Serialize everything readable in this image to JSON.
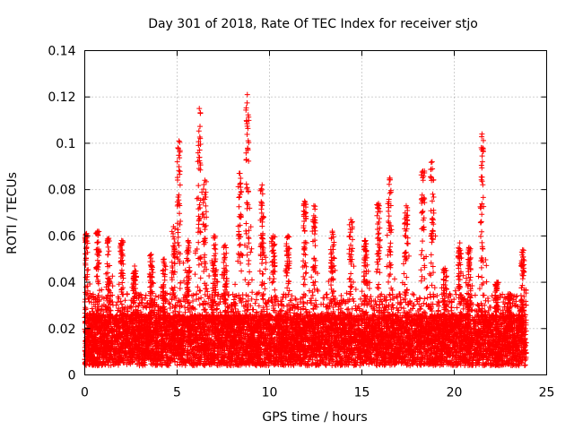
{
  "chart_data": {
    "type": "scatter",
    "title": "Day 301 of 2018, Rate Of TEC Index for receiver stjo",
    "xlabel": "GPS time / hours",
    "ylabel": "ROTI / TECUs",
    "xlim": [
      0,
      25
    ],
    "ylim": [
      0,
      0.14
    ],
    "xticks": [
      0,
      5,
      10,
      15,
      20,
      25
    ],
    "yticks": [
      0,
      0.02,
      0.04,
      0.06,
      0.08,
      0.1,
      0.12,
      0.14
    ],
    "xtick_labels": [
      "0",
      "5",
      "10",
      "15",
      "20",
      "25"
    ],
    "ytick_labels": [
      "0",
      "0.02",
      "0.04",
      "0.06",
      "0.08",
      "0.1",
      "0.12",
      "0.14"
    ],
    "grid": true,
    "marker": "+",
    "color": "#ff0000",
    "x_range_of_data": [
      0,
      23.9
    ],
    "series": [
      {
        "name": "ROTI",
        "peaks": [
          {
            "x": 0.1,
            "y": 0.061
          },
          {
            "x": 0.7,
            "y": 0.062
          },
          {
            "x": 1.3,
            "y": 0.059
          },
          {
            "x": 2.0,
            "y": 0.058
          },
          {
            "x": 2.7,
            "y": 0.047
          },
          {
            "x": 3.6,
            "y": 0.052
          },
          {
            "x": 4.3,
            "y": 0.05
          },
          {
            "x": 4.8,
            "y": 0.064
          },
          {
            "x": 5.1,
            "y": 0.101
          },
          {
            "x": 5.6,
            "y": 0.058
          },
          {
            "x": 6.2,
            "y": 0.115
          },
          {
            "x": 6.5,
            "y": 0.084
          },
          {
            "x": 7.0,
            "y": 0.06
          },
          {
            "x": 7.6,
            "y": 0.056
          },
          {
            "x": 8.4,
            "y": 0.087
          },
          {
            "x": 8.8,
            "y": 0.121
          },
          {
            "x": 9.6,
            "y": 0.082
          },
          {
            "x": 10.2,
            "y": 0.06
          },
          {
            "x": 11.0,
            "y": 0.06
          },
          {
            "x": 11.9,
            "y": 0.075
          },
          {
            "x": 12.4,
            "y": 0.073
          },
          {
            "x": 13.4,
            "y": 0.062
          },
          {
            "x": 14.4,
            "y": 0.067
          },
          {
            "x": 15.2,
            "y": 0.058
          },
          {
            "x": 15.9,
            "y": 0.074
          },
          {
            "x": 16.5,
            "y": 0.085
          },
          {
            "x": 17.4,
            "y": 0.073
          },
          {
            "x": 18.3,
            "y": 0.088
          },
          {
            "x": 18.8,
            "y": 0.092
          },
          {
            "x": 19.5,
            "y": 0.046
          },
          {
            "x": 20.3,
            "y": 0.057
          },
          {
            "x": 20.8,
            "y": 0.055
          },
          {
            "x": 21.5,
            "y": 0.104
          },
          {
            "x": 22.3,
            "y": 0.04
          },
          {
            "x": 23.0,
            "y": 0.035
          },
          {
            "x": 23.7,
            "y": 0.054
          }
        ]
      }
    ]
  }
}
